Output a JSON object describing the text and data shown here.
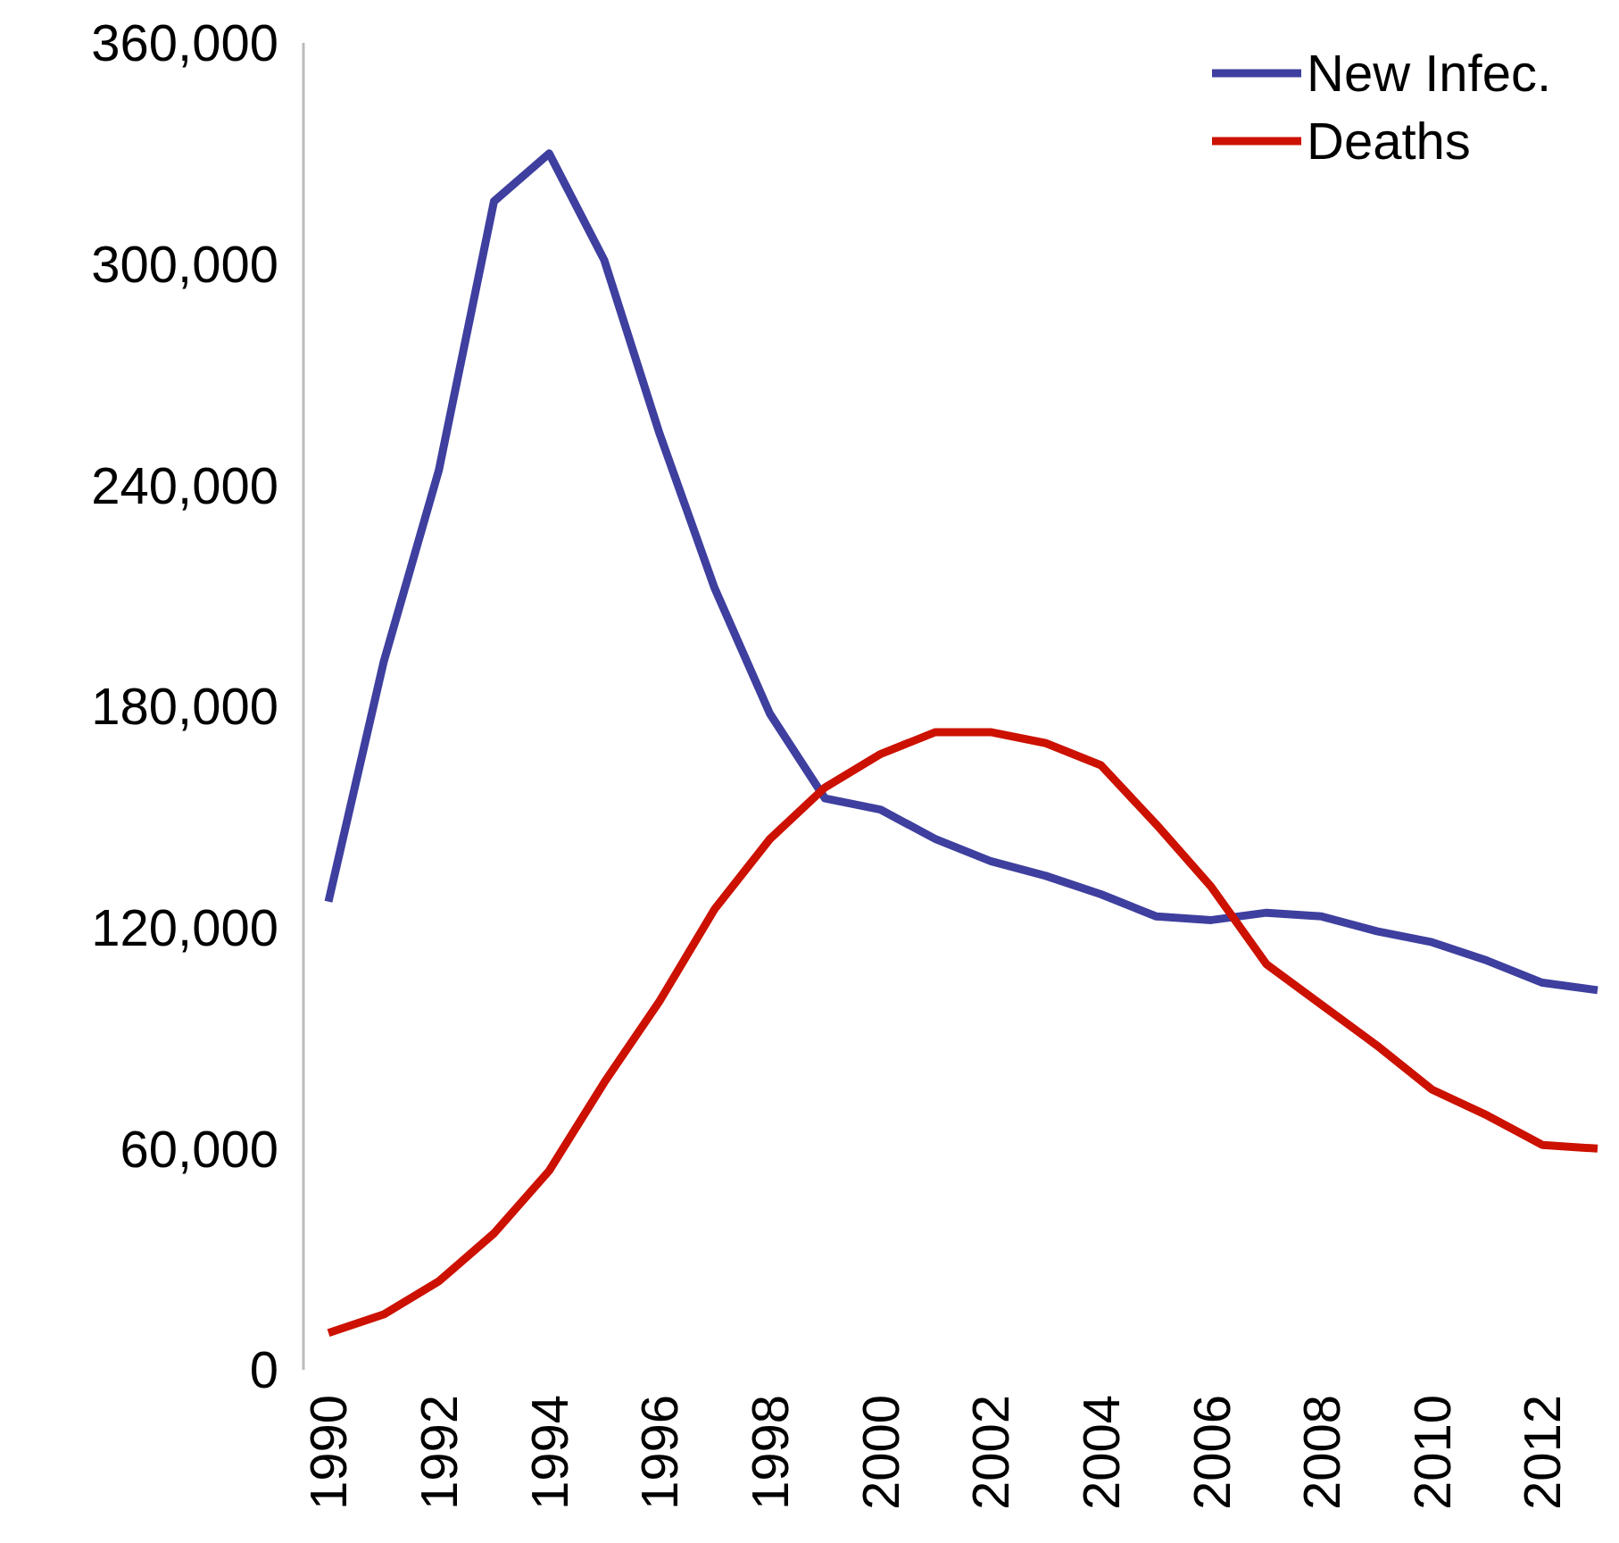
{
  "chart_data": {
    "type": "line",
    "categories": [
      "1990",
      null,
      "1992",
      null,
      "1994",
      null,
      "1996",
      null,
      "1998",
      null,
      "2000",
      null,
      "2002",
      null,
      "2004",
      null,
      "2006",
      null,
      "2008",
      null,
      "2010",
      null,
      "2012",
      null
    ],
    "series": [
      {
        "name": "New Infec.",
        "color": "#3e3f9e",
        "values": [
          127000,
          192000,
          244000,
          317000,
          330000,
          301000,
          254000,
          212000,
          178000,
          155000,
          152000,
          144000,
          138000,
          134000,
          129000,
          123000,
          122000,
          124000,
          123000,
          119000,
          116000,
          111000,
          105000,
          103000
        ]
      },
      {
        "name": "Deaths",
        "color": "#cc1100",
        "values": [
          10000,
          15000,
          24000,
          37000,
          54000,
          78000,
          100000,
          125000,
          144000,
          158000,
          167000,
          173000,
          173000,
          170000,
          164000,
          148000,
          131000,
          110000,
          99000,
          88000,
          76000,
          69000,
          61000,
          60000
        ]
      }
    ],
    "ylim": [
      0,
      360000
    ],
    "yticks": [
      {
        "value": 0,
        "label": "0"
      },
      {
        "value": 60000,
        "label": "60,000"
      },
      {
        "value": 120000,
        "label": "120,000"
      },
      {
        "value": 180000,
        "label": "180,000"
      },
      {
        "value": 240000,
        "label": "240,000"
      },
      {
        "value": 300000,
        "label": "300,000"
      },
      {
        "value": 360000,
        "label": "360,000"
      }
    ],
    "grid": false,
    "legend": "top right",
    "marker": "none",
    "line_style": "solid"
  }
}
